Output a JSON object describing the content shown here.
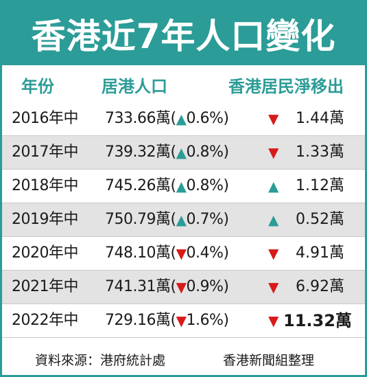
{
  "title": "香港近7年人口變化",
  "chart_data": {
    "type": "table",
    "columns": [
      "年份",
      "居港人口",
      "香港居民淨移出"
    ],
    "rows": [
      {
        "year": "2016年中",
        "pop_value": "733.66萬",
        "pop_dir": "up",
        "pop_change": "0.6%",
        "out_dir": "down",
        "out_value": "1.44萬"
      },
      {
        "year": "2017年中",
        "pop_value": "739.32萬",
        "pop_dir": "up",
        "pop_change": "0.8%",
        "out_dir": "down",
        "out_value": "1.33萬"
      },
      {
        "year": "2018年中",
        "pop_value": "745.26萬",
        "pop_dir": "up",
        "pop_change": "0.8%",
        "out_dir": "up",
        "out_value": "1.12萬"
      },
      {
        "year": "2019年中",
        "pop_value": "750.79萬",
        "pop_dir": "up",
        "pop_change": "0.7%",
        "out_dir": "up",
        "out_value": "0.52萬"
      },
      {
        "year": "2020年中",
        "pop_value": "748.10萬",
        "pop_dir": "down",
        "pop_change": "0.4%",
        "out_dir": "down",
        "out_value": "4.91萬"
      },
      {
        "year": "2021年中",
        "pop_value": "741.31萬",
        "pop_dir": "down",
        "pop_change": "0.9%",
        "out_dir": "down",
        "out_value": "6.92萬"
      },
      {
        "year": "2022年中",
        "pop_value": "729.16萬",
        "pop_dir": "down",
        "pop_change": "1.6%",
        "out_dir": "down",
        "out_value": "11.32萬"
      }
    ]
  },
  "footer": {
    "source": "資料來源：港府統計處",
    "credit": "香港新聞組整理"
  },
  "colors": {
    "teal": "#2b9c97",
    "red": "#d71a1a",
    "shade": "#e3e3e3"
  }
}
